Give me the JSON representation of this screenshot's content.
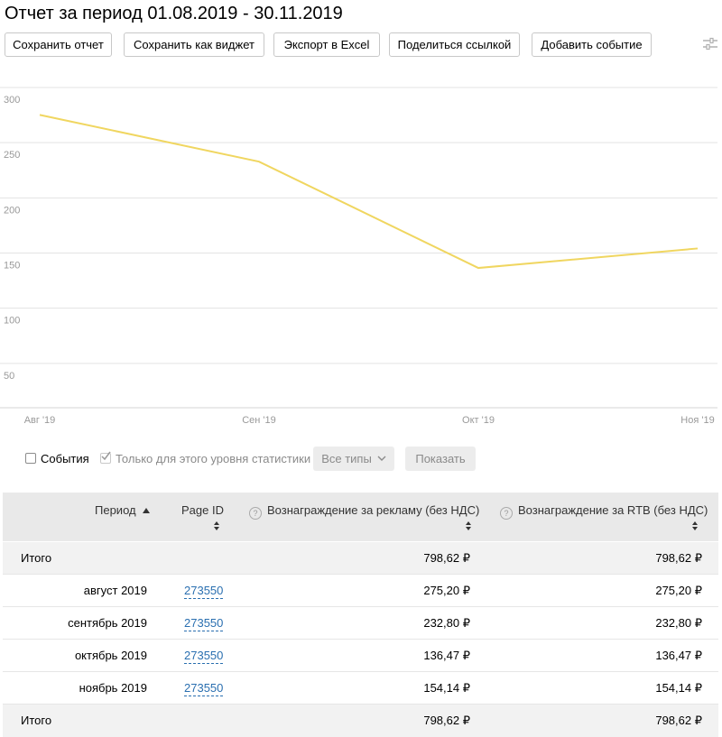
{
  "page": {
    "title": "Отчет за период 01.08.2019 - 30.11.2019"
  },
  "toolbar": {
    "save_report": "Сохранить отчет",
    "save_widget": "Сохранить как виджет",
    "export_excel": "Экспорт в Excel",
    "share_link": "Поделиться ссылкой",
    "add_event": "Добавить событие",
    "settings_icon": "sliders-icon"
  },
  "chart_data": {
    "type": "line",
    "categories": [
      "Авг '19",
      "Сен '19",
      "Окт '19",
      "Ноя '19"
    ],
    "series": [
      {
        "values": [
          275.2,
          232.8,
          136.47,
          154.14
        ],
        "color": "#f0d660"
      }
    ],
    "yticks": [
      300,
      250,
      200,
      150,
      100,
      50
    ],
    "ylim": [
      0,
      300
    ],
    "grid": true
  },
  "filters": {
    "events_label": "События",
    "events_checked": false,
    "level_only_label": "Только для этого уровня статистики",
    "level_only_checked": true,
    "types_button": "Все типы",
    "show_button": "Показать"
  },
  "table": {
    "headers": {
      "period": "Период",
      "page_id": "Page ID",
      "ad_reward": "Вознаграждение за рекламу (без НДС)",
      "rtb_reward": "Вознаграждение за RTB (без НДС)"
    },
    "total_top": {
      "label": "Итого",
      "ad": "798,62 ₽",
      "rtb": "798,62 ₽"
    },
    "rows": [
      {
        "period": "август 2019",
        "page_id": "273550",
        "ad": "275,20 ₽",
        "rtb": "275,20 ₽"
      },
      {
        "period": "сентябрь 2019",
        "page_id": "273550",
        "ad": "232,80 ₽",
        "rtb": "232,80 ₽"
      },
      {
        "period": "октябрь 2019",
        "page_id": "273550",
        "ad": "136,47 ₽",
        "rtb": "136,47 ₽"
      },
      {
        "period": "ноябрь 2019",
        "page_id": "273550",
        "ad": "154,14 ₽",
        "rtb": "154,14 ₽"
      }
    ],
    "total_bottom": {
      "label": "Итого",
      "ad": "798,62 ₽",
      "rtb": "798,62 ₽"
    }
  }
}
